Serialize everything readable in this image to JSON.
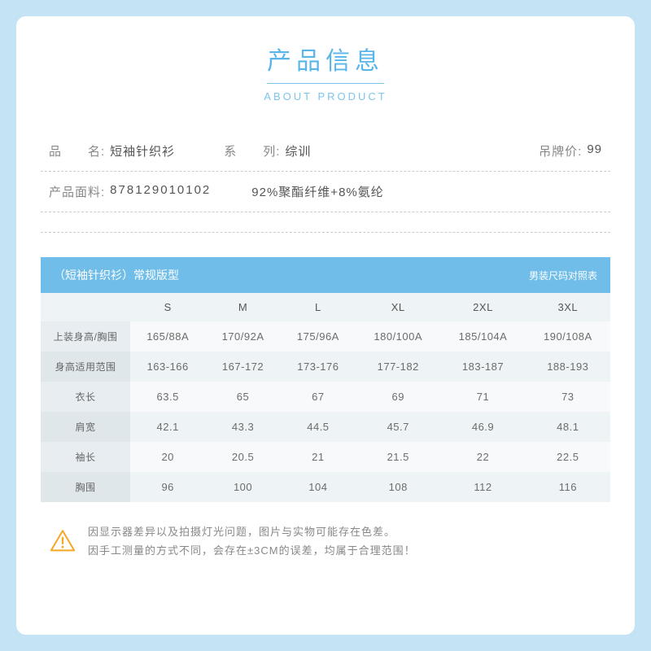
{
  "header": {
    "title_cn": "产品信息",
    "title_en": "ABOUT PRODUCT"
  },
  "info": {
    "name_label": "品　　名:",
    "name_value": "短袖针织衫",
    "series_label": "系　　列:",
    "series_value": "综训",
    "tagprice_label": "吊牌价:",
    "tagprice_value": "99",
    "fabric_label": "产品面料:",
    "fabric_code": "878129010102",
    "fabric_comp": "92%聚酯纤维+8%氨纶"
  },
  "size_bar": {
    "left": "（短袖针织衫）常规版型",
    "right": "男装尺码对照表"
  },
  "table": {
    "columns": [
      "",
      "S",
      "M",
      "L",
      "XL",
      "2XL",
      "3XL"
    ],
    "rows": [
      [
        "上装身高/胸围",
        "165/88A",
        "170/92A",
        "175/96A",
        "180/100A",
        "185/104A",
        "190/108A"
      ],
      [
        "身高适用范围",
        "163-166",
        "167-172",
        "173-176",
        "177-182",
        "183-187",
        "188-193"
      ],
      [
        "衣长",
        "63.5",
        "65",
        "67",
        "69",
        "71",
        "73"
      ],
      [
        "肩宽",
        "42.1",
        "43.3",
        "44.5",
        "45.7",
        "46.9",
        "48.1"
      ],
      [
        "袖长",
        "20",
        "20.5",
        "21",
        "21.5",
        "22",
        "22.5"
      ],
      [
        "胸围",
        "96",
        "100",
        "104",
        "108",
        "112",
        "116"
      ]
    ]
  },
  "notice": {
    "line1": "因显示器差异以及拍摄灯光问题，图片与实物可能存在色差。",
    "line2": "因手工测量的方式不同，会存在±3CM的误差，均属于合理范围！"
  },
  "colors": {
    "accent": "#5ab5e8",
    "bar": "#6fbde8",
    "outer_bg": "#c4e4f5"
  }
}
